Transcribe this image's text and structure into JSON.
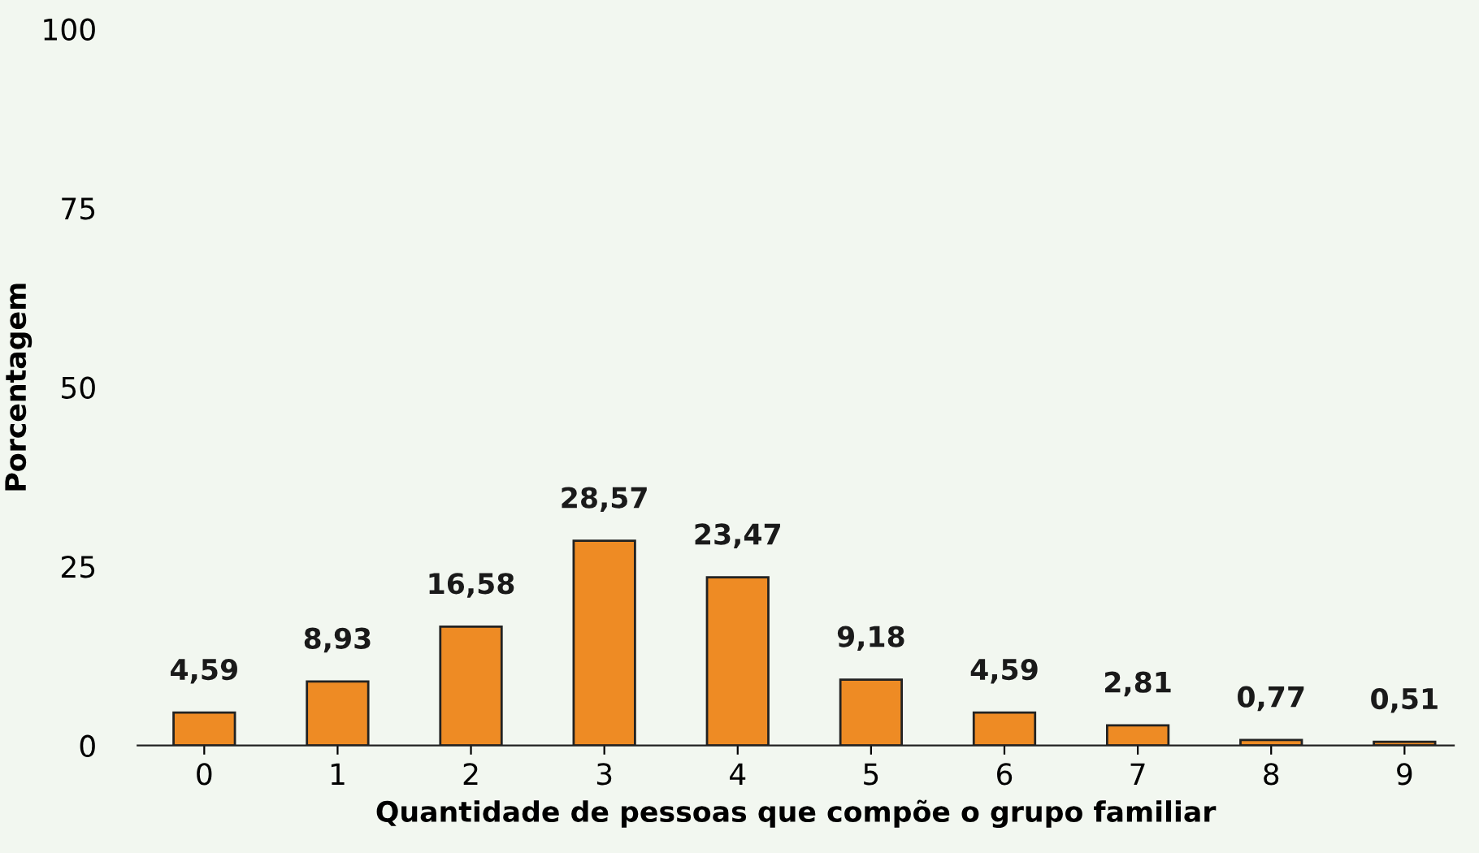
{
  "chart_data": {
    "type": "bar",
    "xlabel": "Quantidade de pessoas que compõe o grupo familiar",
    "ylabel": "Porcentagem",
    "categories": [
      "0",
      "1",
      "2",
      "3",
      "4",
      "5",
      "6",
      "7",
      "8",
      "9"
    ],
    "values": [
      4.59,
      8.93,
      16.58,
      28.57,
      23.47,
      9.18,
      4.59,
      2.81,
      0.77,
      0.51
    ],
    "value_labels": [
      "4,59",
      "8,93",
      "16,58",
      "28,57",
      "23,47",
      "9,18",
      "4,59",
      "2,81",
      "0,77",
      "0,51"
    ],
    "color": "#ee8b24",
    "ylim": [
      0,
      100
    ],
    "yticks": [
      0,
      25,
      50,
      75,
      100
    ],
    "grid": false,
    "legend": false
  }
}
